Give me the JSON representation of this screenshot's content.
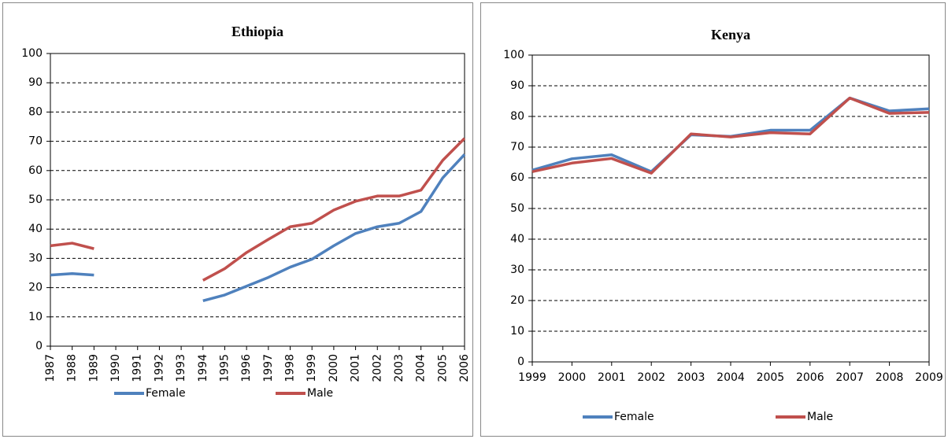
{
  "chart_data": [
    {
      "type": "line",
      "title": "Ethiopia",
      "categories": [
        "1987",
        "1988",
        "1989",
        "1990",
        "1991",
        "1992",
        "1993",
        "1994",
        "1995",
        "1996",
        "1997",
        "1998",
        "1999",
        "2000",
        "2001",
        "2002",
        "2003",
        "2004",
        "2005",
        "2006"
      ],
      "series": [
        {
          "name": "Female",
          "color": "#4f81bd",
          "values": [
            24.3,
            24.8,
            24.3,
            null,
            null,
            null,
            null,
            15.5,
            17.5,
            20.5,
            23.5,
            27,
            29.7,
            34.3,
            38.5,
            40.8,
            42,
            46,
            57.5,
            65.5
          ]
        },
        {
          "name": "Male",
          "color": "#c0504d",
          "values": [
            34.3,
            35.2,
            33.3,
            null,
            null,
            null,
            null,
            22.5,
            26.5,
            32,
            36.5,
            40.8,
            42,
            46.5,
            49.5,
            51.3,
            51.3,
            53.3,
            63.5,
            71
          ]
        }
      ],
      "ylim": [
        0,
        100
      ],
      "yticks": [
        0,
        10,
        20,
        30,
        40,
        50,
        60,
        70,
        80,
        90,
        100
      ],
      "grid": true,
      "legend": "bottom"
    },
    {
      "type": "line",
      "title": "Kenya",
      "categories": [
        "1999",
        "2000",
        "2001",
        "2002",
        "2003",
        "2004",
        "2005",
        "2006",
        "2007",
        "2008",
        "2009"
      ],
      "series": [
        {
          "name": "Female",
          "color": "#4f81bd",
          "values": [
            62.5,
            66.2,
            67.5,
            62,
            74,
            73.5,
            75.5,
            75.5,
            86,
            81.8,
            82.5
          ]
        },
        {
          "name": "Male",
          "color": "#c0504d",
          "values": [
            62,
            64.8,
            66.3,
            61.5,
            74.3,
            73.3,
            74.7,
            74.3,
            86,
            81,
            81.3
          ]
        }
      ],
      "ylim": [
        0,
        100
      ],
      "yticks": [
        0,
        10,
        20,
        30,
        40,
        50,
        60,
        70,
        80,
        90,
        100
      ],
      "grid": true,
      "legend": "bottom"
    }
  ]
}
